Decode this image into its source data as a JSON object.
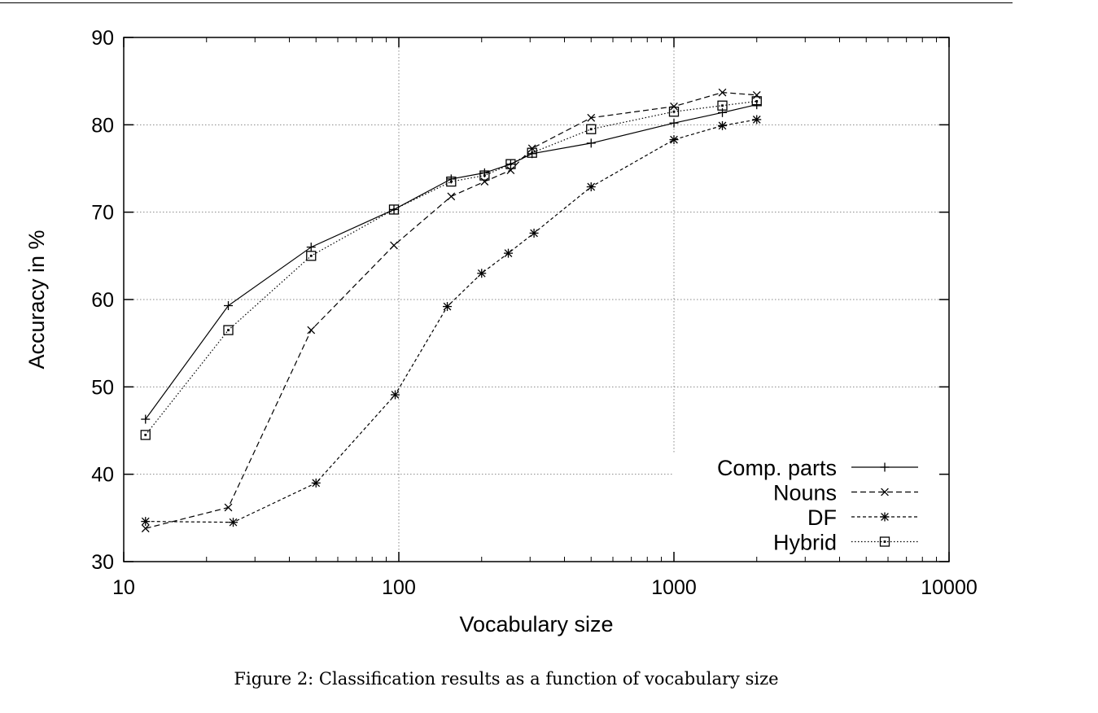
{
  "caption": "Figure 2: Classification results as a function of vocabulary size",
  "chart_data": {
    "type": "line",
    "xlabel": "Vocabulary size",
    "ylabel": "Accuracy in %",
    "xscale": "log",
    "xlim": [
      10,
      10000
    ],
    "ylim": [
      30,
      90
    ],
    "xticks": [
      10,
      100,
      1000,
      10000
    ],
    "xtick_labels": [
      "10",
      "100",
      "1000",
      "10000"
    ],
    "yticks": [
      30,
      40,
      50,
      60,
      70,
      80,
      90
    ],
    "ytick_labels": [
      "30",
      "40",
      "50",
      "60",
      "70",
      "80",
      "90"
    ],
    "grid": true,
    "legend_position": "bottom-right",
    "series": [
      {
        "name": "Comp. parts",
        "line": "solid",
        "marker": "plus",
        "x": [
          12,
          24,
          48,
          96,
          155,
          205,
          255,
          305,
          500,
          1000,
          1500,
          2000
        ],
        "y": [
          46.3,
          59.3,
          66.0,
          70.3,
          73.8,
          74.5,
          75.5,
          76.7,
          77.9,
          80.2,
          81.4,
          82.3
        ]
      },
      {
        "name": "Nouns",
        "line": "dashed",
        "marker": "cross",
        "x": [
          12,
          24,
          48,
          96,
          155,
          205,
          255,
          305,
          500,
          1000,
          1500,
          2000
        ],
        "y": [
          33.8,
          36.2,
          56.5,
          66.2,
          71.8,
          73.5,
          74.8,
          77.3,
          80.8,
          82.1,
          83.7,
          83.4
        ]
      },
      {
        "name": "DF",
        "line": "short-dashed",
        "marker": "star",
        "x": [
          12,
          25,
          50,
          97,
          150,
          200,
          250,
          310,
          500,
          1000,
          1500,
          2000
        ],
        "y": [
          34.6,
          34.5,
          39.0,
          49.1,
          59.2,
          63.0,
          65.3,
          67.6,
          72.9,
          78.3,
          79.9,
          80.6
        ]
      },
      {
        "name": "Hybrid",
        "line": "dotted",
        "marker": "box",
        "x": [
          12,
          24,
          48,
          96,
          155,
          205,
          255,
          305,
          500,
          1000,
          1500,
          2000
        ],
        "y": [
          44.5,
          56.5,
          65.0,
          70.3,
          73.5,
          74.2,
          75.5,
          76.8,
          79.5,
          81.5,
          82.2,
          82.7
        ]
      }
    ]
  }
}
